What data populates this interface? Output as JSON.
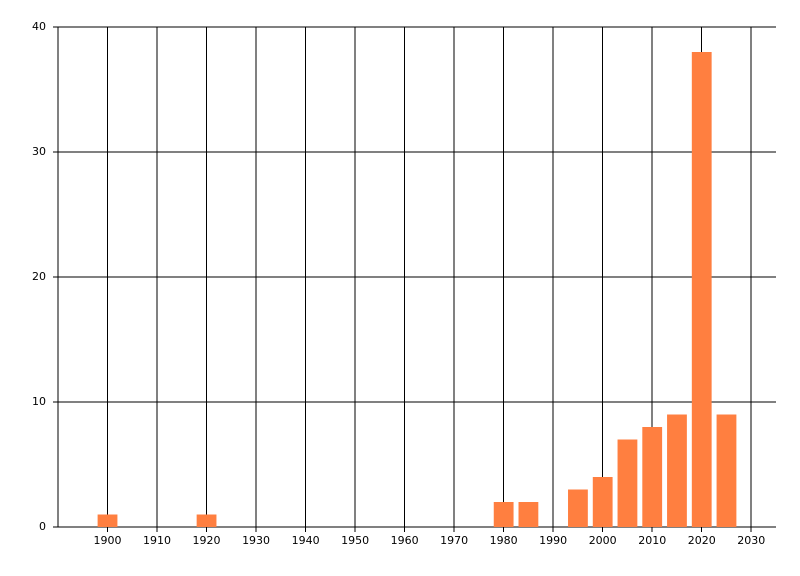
{
  "chart_data": {
    "type": "bar",
    "x": [
      1900,
      1920,
      1980,
      1985,
      1995,
      2000,
      2005,
      2010,
      2015,
      2020,
      2025
    ],
    "values": [
      1,
      1,
      2,
      2,
      3,
      4,
      7,
      8,
      9,
      38,
      9
    ],
    "color": "#ff7f40",
    "xlim": [
      1890,
      2035
    ],
    "xticks": [
      1900,
      1910,
      1920,
      1930,
      1940,
      1950,
      1960,
      1970,
      1980,
      1990,
      2000,
      2010,
      2020,
      2030
    ],
    "ylim": [
      0,
      40
    ],
    "yticks": [
      0,
      10,
      20,
      30,
      40
    ],
    "grid": true
  }
}
